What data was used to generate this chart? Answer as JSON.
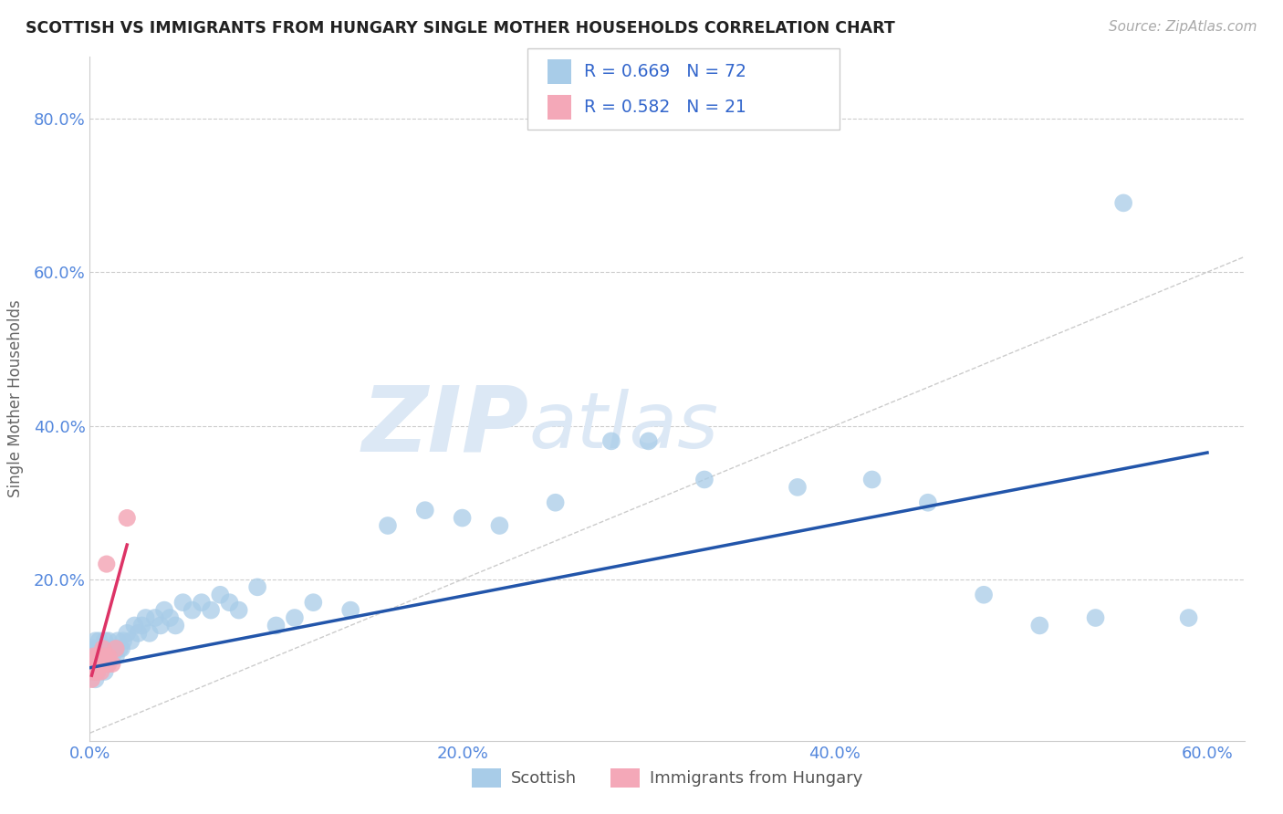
{
  "title": "SCOTTISH VS IMMIGRANTS FROM HUNGARY SINGLE MOTHER HOUSEHOLDS CORRELATION CHART",
  "source": "Source: ZipAtlas.com",
  "ylabel": "Single Mother Households",
  "xlim": [
    0.0,
    0.62
  ],
  "ylim": [
    -0.01,
    0.88
  ],
  "xtick_positions": [
    0.0,
    0.2,
    0.4,
    0.6
  ],
  "xtick_labels": [
    "0.0%",
    "20.0%",
    "40.0%",
    "60.0%"
  ],
  "ytick_positions": [
    0.2,
    0.4,
    0.6,
    0.8
  ],
  "ytick_labels": [
    "20.0%",
    "40.0%",
    "60.0%",
    "80.0%"
  ],
  "legend_blue_label": "Scottish",
  "legend_pink_label": "Immigrants from Hungary",
  "R_blue": 0.669,
  "N_blue": 72,
  "R_pink": 0.582,
  "N_pink": 21,
  "blue_color": "#a8cce8",
  "pink_color": "#f4a8b8",
  "blue_line_color": "#2255aa",
  "pink_line_color": "#dd3366",
  "diagonal_color": "#cccccc",
  "background_color": "#ffffff",
  "watermark_color": "#dce8f5",
  "scottish_x": [
    0.001,
    0.002,
    0.002,
    0.003,
    0.003,
    0.003,
    0.004,
    0.004,
    0.004,
    0.005,
    0.005,
    0.005,
    0.006,
    0.006,
    0.006,
    0.007,
    0.007,
    0.008,
    0.008,
    0.008,
    0.009,
    0.009,
    0.01,
    0.01,
    0.011,
    0.012,
    0.013,
    0.014,
    0.015,
    0.016,
    0.017,
    0.018,
    0.02,
    0.022,
    0.024,
    0.026,
    0.028,
    0.03,
    0.032,
    0.035,
    0.038,
    0.04,
    0.043,
    0.046,
    0.05,
    0.055,
    0.06,
    0.065,
    0.07,
    0.075,
    0.08,
    0.09,
    0.1,
    0.11,
    0.12,
    0.14,
    0.16,
    0.18,
    0.2,
    0.22,
    0.25,
    0.28,
    0.3,
    0.33,
    0.38,
    0.42,
    0.45,
    0.48,
    0.51,
    0.54,
    0.555,
    0.59
  ],
  "scottish_y": [
    0.08,
    0.09,
    0.11,
    0.07,
    0.1,
    0.12,
    0.08,
    0.1,
    0.11,
    0.09,
    0.1,
    0.12,
    0.09,
    0.11,
    0.1,
    0.09,
    0.11,
    0.08,
    0.1,
    0.12,
    0.09,
    0.11,
    0.1,
    0.12,
    0.11,
    0.1,
    0.11,
    0.1,
    0.12,
    0.11,
    0.11,
    0.12,
    0.13,
    0.12,
    0.14,
    0.13,
    0.14,
    0.15,
    0.13,
    0.15,
    0.14,
    0.16,
    0.15,
    0.14,
    0.17,
    0.16,
    0.17,
    0.16,
    0.18,
    0.17,
    0.16,
    0.19,
    0.14,
    0.15,
    0.17,
    0.16,
    0.27,
    0.29,
    0.28,
    0.27,
    0.3,
    0.38,
    0.38,
    0.33,
    0.32,
    0.33,
    0.3,
    0.18,
    0.14,
    0.15,
    0.69,
    0.15
  ],
  "hungary_x": [
    0.001,
    0.002,
    0.002,
    0.003,
    0.003,
    0.004,
    0.004,
    0.005,
    0.005,
    0.006,
    0.006,
    0.007,
    0.007,
    0.008,
    0.008,
    0.009,
    0.01,
    0.01,
    0.012,
    0.014,
    0.02
  ],
  "hungary_y": [
    0.07,
    0.08,
    0.1,
    0.08,
    0.09,
    0.08,
    0.1,
    0.09,
    0.1,
    0.08,
    0.09,
    0.09,
    0.11,
    0.09,
    0.1,
    0.22,
    0.09,
    0.1,
    0.09,
    0.11,
    0.28
  ],
  "blue_regline_x": [
    0.0,
    0.6
  ],
  "blue_regline_y": [
    0.085,
    0.365
  ],
  "pink_regline_x": [
    0.001,
    0.02
  ],
  "pink_regline_y": [
    0.075,
    0.245
  ]
}
